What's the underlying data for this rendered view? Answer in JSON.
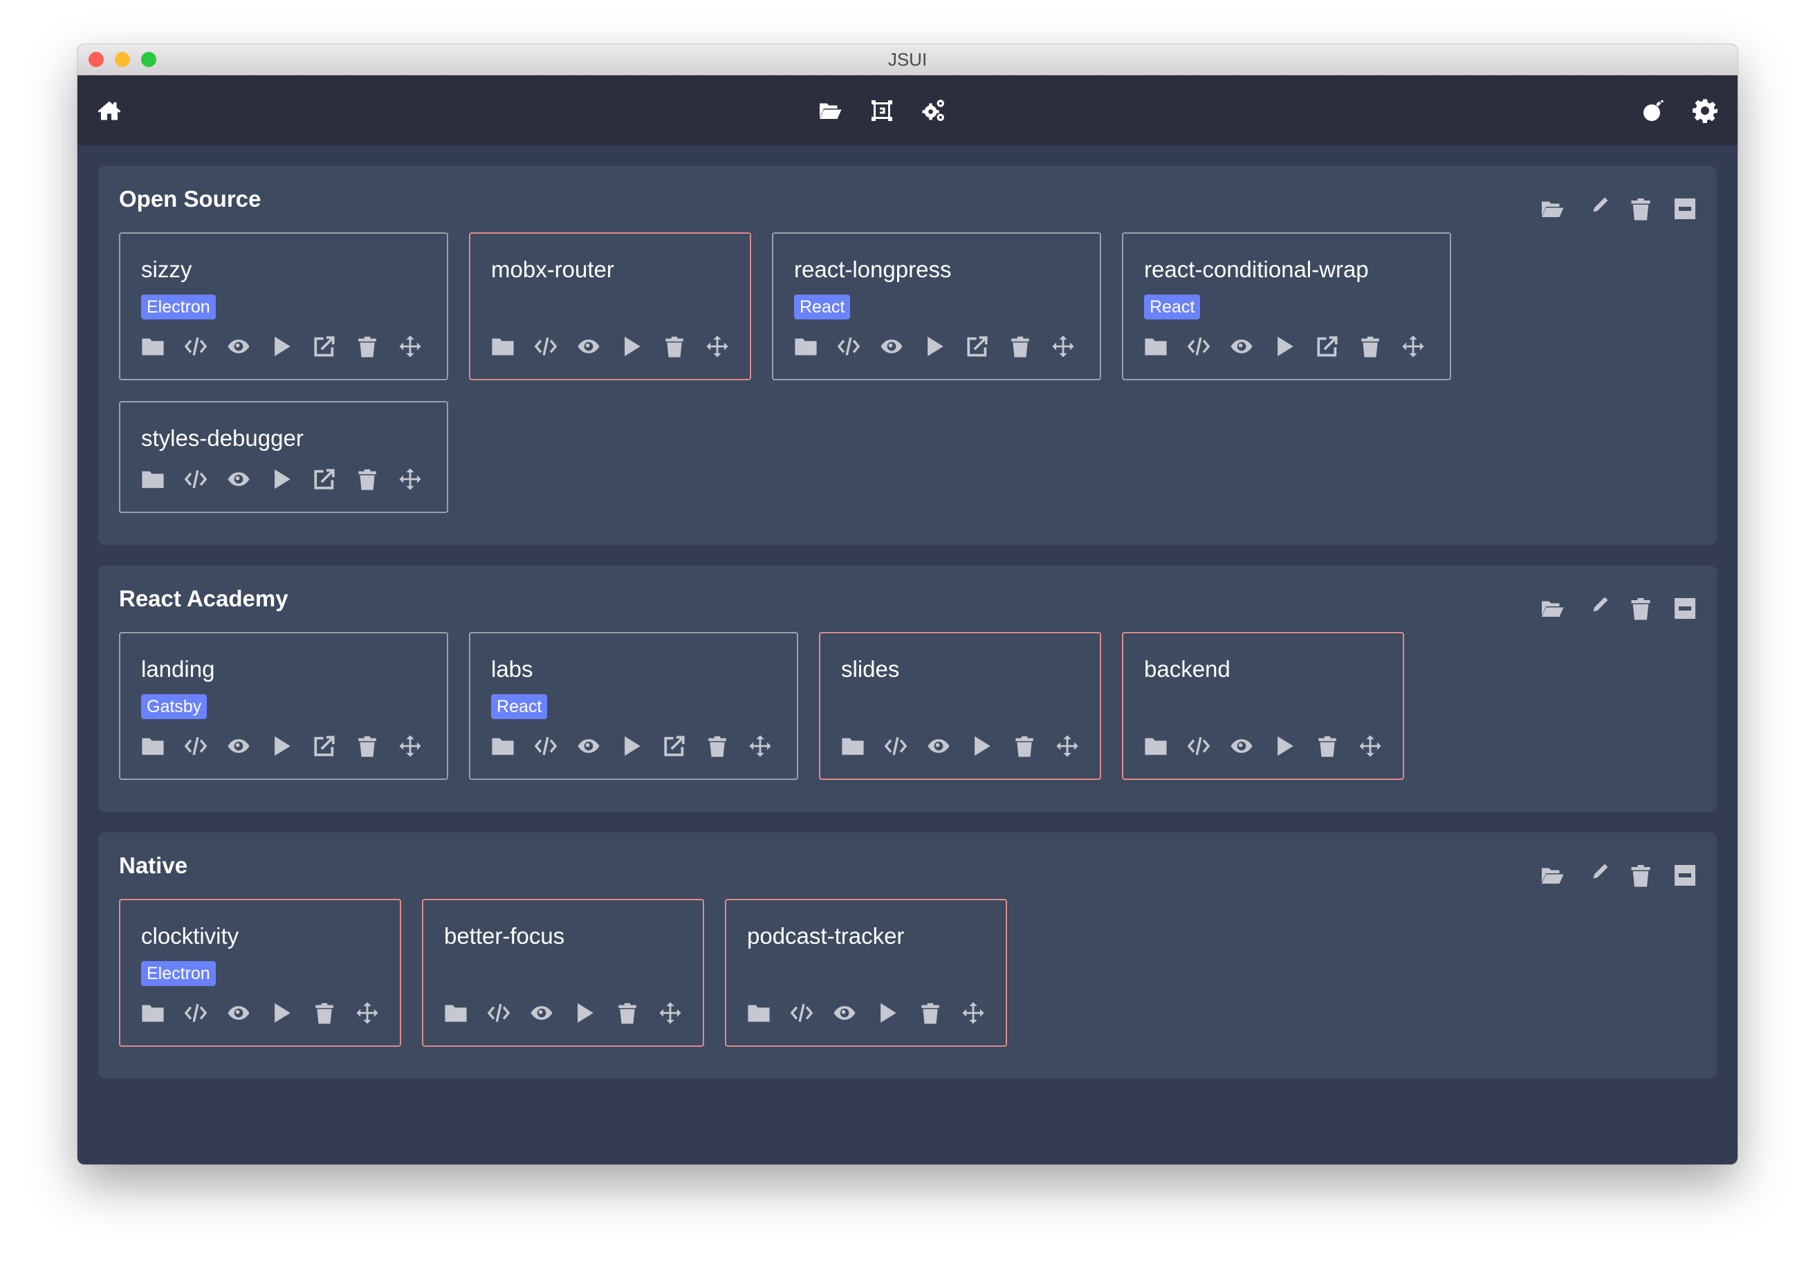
{
  "window": {
    "title": "JSUI"
  },
  "toolbar": {
    "left": [
      {
        "icon": "home-icon"
      }
    ],
    "center": [
      {
        "icon": "folder-open-icon"
      },
      {
        "icon": "expand-icon"
      },
      {
        "icon": "cogs-icon"
      }
    ],
    "right": [
      {
        "icon": "bomb-icon"
      },
      {
        "icon": "cog-icon"
      }
    ]
  },
  "colors": {
    "badge": "#6a82fb",
    "card_border_default": "#9ca0ab",
    "card_border_highlight": "#e08a8a",
    "toolbar_bg": "#2b2e3d",
    "group_bg": "#3e4a5f",
    "content_bg": "#343c53"
  },
  "group_actions": [
    "folder-open-icon",
    "edit-icon",
    "trash-icon",
    "minus-square-icon"
  ],
  "groups": [
    {
      "title": "Open Source",
      "projects": [
        {
          "name": "sizzy",
          "badge": "Electron",
          "border_color": "#9ca0ab",
          "actions": [
            "folder-icon",
            "code-icon",
            "eye-icon",
            "play-icon",
            "external-link-icon",
            "trash-icon",
            "move-icon"
          ]
        },
        {
          "name": "mobx-router",
          "badge": null,
          "border_color": "#e08a8a",
          "actions": [
            "folder-icon",
            "code-icon",
            "eye-icon",
            "play-icon",
            "trash-icon",
            "move-icon"
          ]
        },
        {
          "name": "react-longpress",
          "badge": "React",
          "border_color": "#9ca0ab",
          "actions": [
            "folder-icon",
            "code-icon",
            "eye-icon",
            "play-icon",
            "external-link-icon",
            "trash-icon",
            "move-icon"
          ]
        },
        {
          "name": "react-conditional-wrap",
          "badge": "React",
          "border_color": "#9ca0ab",
          "actions": [
            "folder-icon",
            "code-icon",
            "eye-icon",
            "play-icon",
            "external-link-icon",
            "trash-icon",
            "move-icon"
          ]
        },
        {
          "name": "styles-debugger",
          "badge": null,
          "border_color": "#9ca0ab",
          "actions": [
            "folder-icon",
            "code-icon",
            "eye-icon",
            "play-icon",
            "external-link-icon",
            "trash-icon",
            "move-icon"
          ]
        }
      ]
    },
    {
      "title": "React Academy",
      "projects": [
        {
          "name": "landing",
          "badge": "Gatsby",
          "border_color": "#9ca0ab",
          "actions": [
            "folder-icon",
            "code-icon",
            "eye-icon",
            "play-icon",
            "external-link-icon",
            "trash-icon",
            "move-icon"
          ]
        },
        {
          "name": "labs",
          "badge": "React",
          "border_color": "#9ca0ab",
          "actions": [
            "folder-icon",
            "code-icon",
            "eye-icon",
            "play-icon",
            "external-link-icon",
            "trash-icon",
            "move-icon"
          ]
        },
        {
          "name": "slides",
          "badge": null,
          "border_color": "#e08a8a",
          "actions": [
            "folder-icon",
            "code-icon",
            "eye-icon",
            "play-icon",
            "trash-icon",
            "move-icon"
          ]
        },
        {
          "name": "backend",
          "badge": null,
          "border_color": "#e08a8a",
          "actions": [
            "folder-icon",
            "code-icon",
            "eye-icon",
            "play-icon",
            "trash-icon",
            "move-icon"
          ]
        }
      ]
    },
    {
      "title": "Native",
      "projects": [
        {
          "name": "clocktivity",
          "badge": "Electron",
          "border_color": "#e08a8a",
          "actions": [
            "folder-icon",
            "code-icon",
            "eye-icon",
            "play-icon",
            "trash-icon",
            "move-icon"
          ]
        },
        {
          "name": "better-focus",
          "badge": null,
          "border_color": "#e08a8a",
          "actions": [
            "folder-icon",
            "code-icon",
            "eye-icon",
            "play-icon",
            "trash-icon",
            "move-icon"
          ]
        },
        {
          "name": "podcast-tracker",
          "badge": null,
          "border_color": "#e08a8a",
          "actions": [
            "folder-icon",
            "code-icon",
            "eye-icon",
            "play-icon",
            "trash-icon",
            "move-icon"
          ]
        }
      ]
    }
  ]
}
